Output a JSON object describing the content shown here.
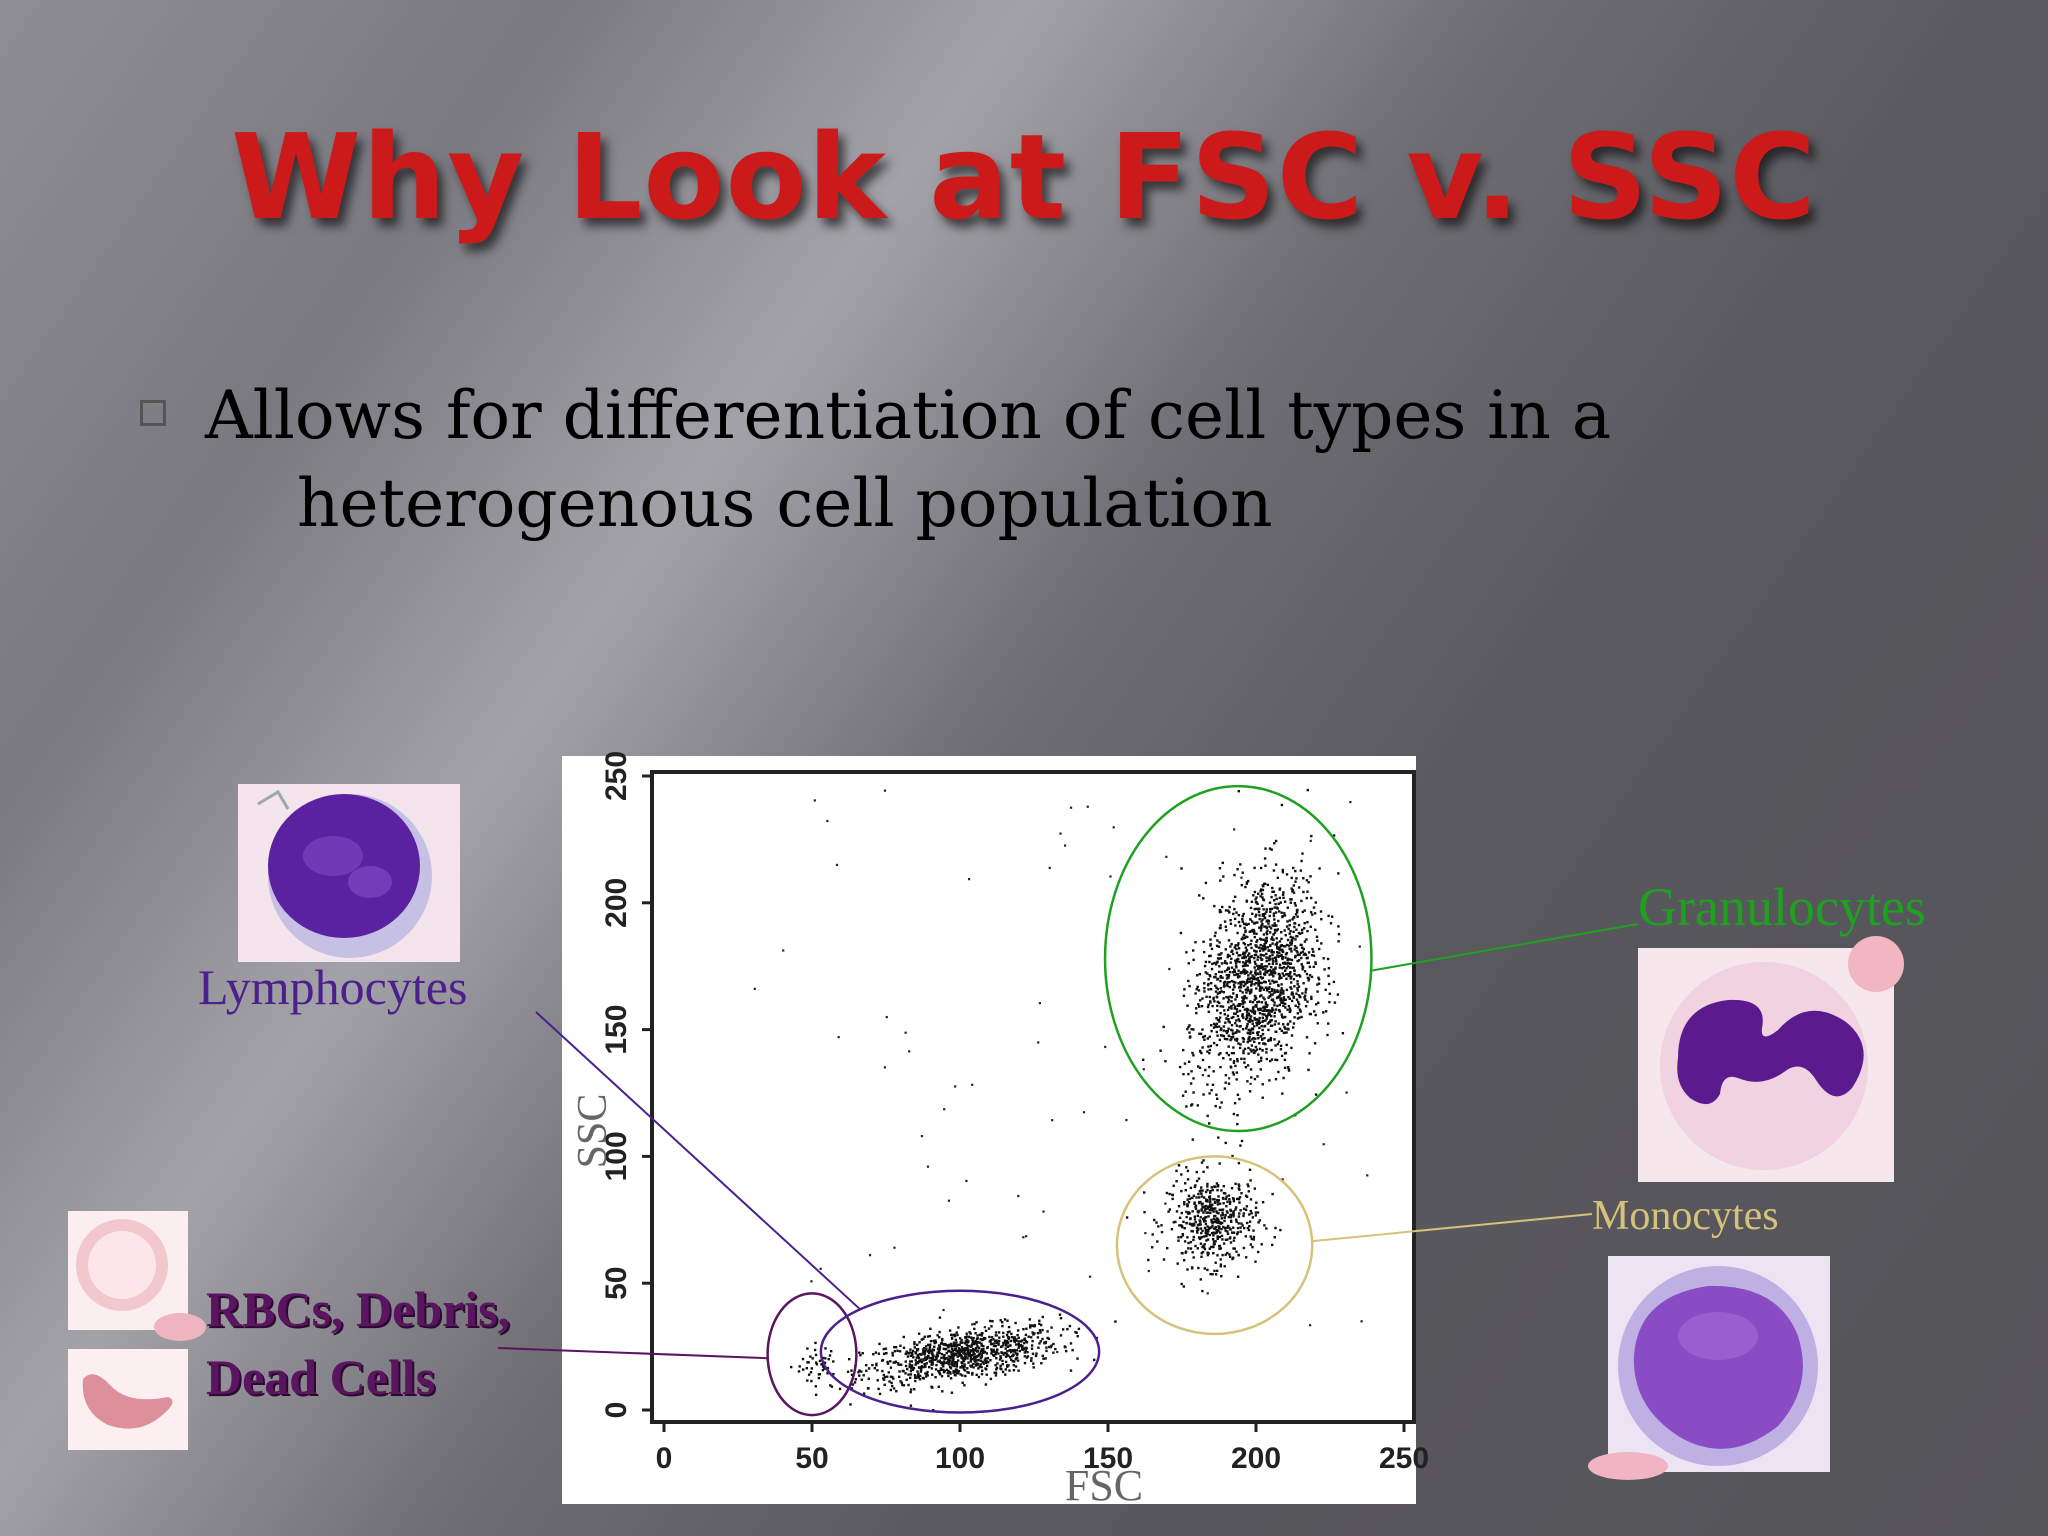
{
  "slide": {
    "title": "Why Look at FSC v. SSC",
    "body_line1": "Allows for differentiation of cell types in a",
    "body_line2": "heterogenous cell population"
  },
  "labels": {
    "lymphocytes": "Lymphocytes",
    "granulocytes": "Granulocytes",
    "monocytes": "Monocytes",
    "rbc_line1": "RBCs, Debris,",
    "rbc_line2": "Dead Cells"
  },
  "colors": {
    "title": "#cc1a1a",
    "lymphocytes": "#4b1f8c",
    "granulocytes": "#1fa01f",
    "monocytes": "#d6c27a",
    "rbc": "#5a1460"
  },
  "chart_data": {
    "type": "scatter",
    "xlabel": "FSC",
    "ylabel": "SSC",
    "xlim": [
      0,
      250
    ],
    "ylim": [
      0,
      250
    ],
    "x_ticks": [
      "0",
      "50",
      "100",
      "150",
      "200",
      "250"
    ],
    "y_ticks": [
      "0",
      "50",
      "100",
      "150",
      "200",
      "250"
    ],
    "clusters": [
      {
        "name": "RBCs, Debris, Dead Cells",
        "center": [
          52,
          18
        ],
        "spread": [
          6,
          8
        ],
        "n": 40
      },
      {
        "name": "Lymphocytes",
        "center": [
          100,
          22
        ],
        "spread": [
          30,
          9
        ],
        "n": 900
      },
      {
        "name": "Monocytes",
        "center": [
          185,
          75
        ],
        "spread": [
          14,
          16
        ],
        "n": 500
      },
      {
        "name": "Granulocytes",
        "center": [
          200,
          170
        ],
        "spread": [
          18,
          38
        ],
        "n": 1500
      }
    ],
    "gates": [
      {
        "name": "RBCs, Debris, Dead Cells",
        "cx": 50,
        "cy": 22,
        "rx": 15,
        "ry": 24
      },
      {
        "name": "Lymphocytes",
        "cx": 100,
        "cy": 23,
        "rx": 47,
        "ry": 24
      },
      {
        "name": "Monocytes",
        "cx": 186,
        "cy": 65,
        "rx": 33,
        "ry": 35
      },
      {
        "name": "Granulocytes",
        "cx": 194,
        "cy": 178,
        "rx": 45,
        "ry": 68
      }
    ]
  }
}
